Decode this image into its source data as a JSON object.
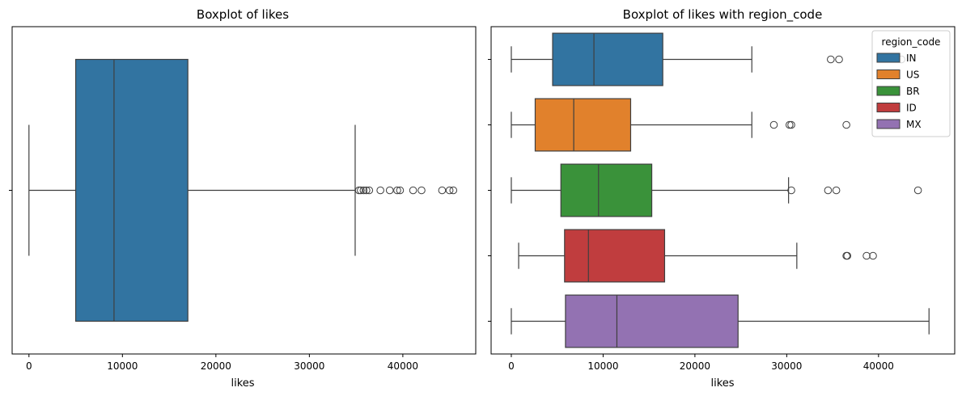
{
  "chart_data": [
    {
      "type": "boxplot",
      "title": "Boxplot of likes",
      "xlabel": "likes",
      "ylabel": "",
      "xlim": [
        -1800,
        47800
      ],
      "xticks": [
        0,
        10000,
        20000,
        30000,
        40000
      ],
      "xtick_labels": [
        "0",
        "10000",
        "20000",
        "30000",
        "40000"
      ],
      "grid": false,
      "boxes": [
        {
          "whisker_low": 0,
          "q1": 5000,
          "median": 9100,
          "q3": 17000,
          "whisker_high": 34900,
          "outliers": [
            35300,
            35500,
            35800,
            36100,
            36400,
            37600,
            38600,
            39400,
            39700,
            41100,
            42000,
            44200,
            45000,
            45400
          ],
          "color": "#3274a1"
        }
      ]
    },
    {
      "type": "boxplot",
      "title": "Boxplot of likes with region_code",
      "xlabel": "likes",
      "ylabel": "",
      "xlim": [
        -2200,
        48300
      ],
      "xticks": [
        0,
        10000,
        20000,
        30000,
        40000
      ],
      "xtick_labels": [
        "0",
        "10000",
        "20000",
        "30000",
        "40000"
      ],
      "grid": false,
      "legend": {
        "title": "region_code",
        "placement": "top-right"
      },
      "series": [
        {
          "name": "IN",
          "color": "#3274a1",
          "whisker_low": 0,
          "q1": 4500,
          "median": 9000,
          "q3": 16500,
          "whisker_high": 26200,
          "outliers": [
            34800,
            35700,
            42500
          ]
        },
        {
          "name": "US",
          "color": "#e1812c",
          "whisker_low": 0,
          "q1": 2600,
          "median": 6800,
          "q3": 13000,
          "whisker_high": 26200,
          "outliers": [
            28600,
            30300,
            30500,
            36500
          ]
        },
        {
          "name": "BR",
          "color": "#3a923a",
          "whisker_low": 0,
          "q1": 5400,
          "median": 9500,
          "q3": 15300,
          "whisker_high": 30200,
          "outliers": [
            30500,
            34500,
            35400,
            44300
          ]
        },
        {
          "name": "ID",
          "color": "#c03d3e",
          "whisker_low": 800,
          "q1": 5800,
          "median": 8400,
          "q3": 16700,
          "whisker_high": 31100,
          "outliers": [
            36500,
            36600,
            38700,
            39400
          ]
        },
        {
          "name": "MX",
          "color": "#9372b2",
          "whisker_low": 0,
          "q1": 5900,
          "median": 11500,
          "q3": 24700,
          "whisker_high": 45500,
          "outliers": []
        }
      ]
    }
  ]
}
